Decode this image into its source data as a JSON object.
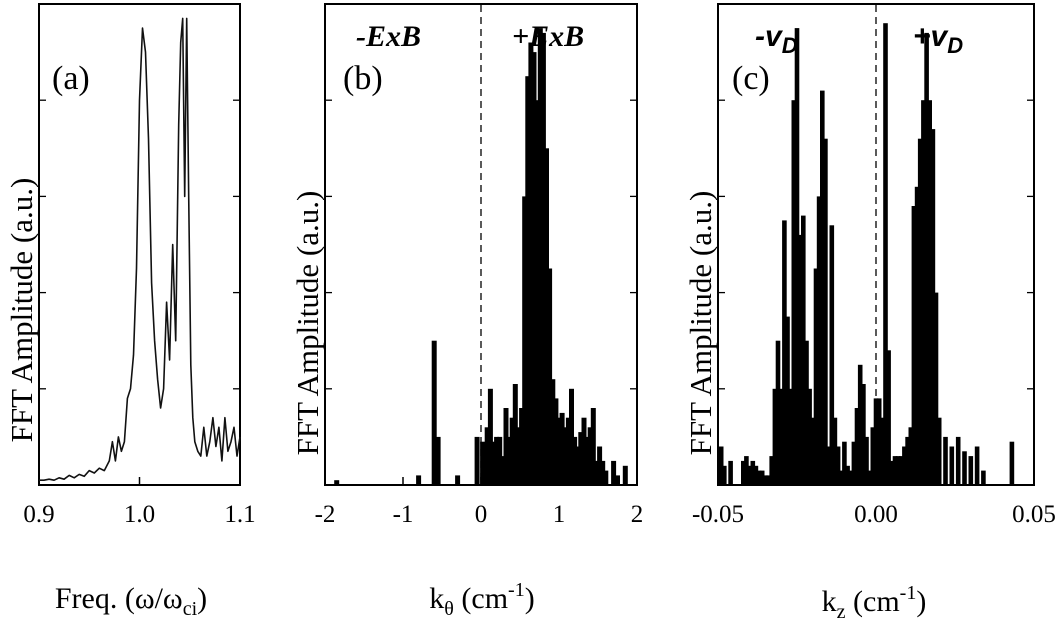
{
  "chart_data": [
    {
      "type": "line",
      "panel_label": "(a)",
      "xlabel": "Freq. (ω/ω",
      "xlabel_sub": "ci",
      "xlabel_tail": ")",
      "ylabel": "FFT Amplitude (a.u.)",
      "xlim": [
        0.9,
        1.1
      ],
      "ylim": [
        0,
        1
      ],
      "x_ticks": [
        0.9,
        1.0,
        1.1
      ],
      "x_tick_labels": [
        "0.9",
        "1.0",
        "1.1"
      ],
      "series": [
        {
          "x": [
            0.9,
            0.905,
            0.91,
            0.915,
            0.92,
            0.925,
            0.93,
            0.935,
            0.94,
            0.945,
            0.95,
            0.955,
            0.96,
            0.965,
            0.97,
            0.973,
            0.976,
            0.979,
            0.982,
            0.985,
            0.988,
            0.991,
            0.994,
            0.997,
            1.0,
            1.003,
            1.006,
            1.009,
            1.012,
            1.015,
            1.018,
            1.021,
            1.024,
            1.027,
            1.03,
            1.033,
            1.036,
            1.039,
            1.041,
            1.043,
            1.045,
            1.047,
            1.049,
            1.051,
            1.053,
            1.055,
            1.058,
            1.061,
            1.064,
            1.067,
            1.07,
            1.073,
            1.076,
            1.079,
            1.082,
            1.085,
            1.088,
            1.091,
            1.094,
            1.097,
            1.1
          ],
          "y": [
            0.01,
            0.01,
            0.012,
            0.01,
            0.015,
            0.012,
            0.02,
            0.015,
            0.022,
            0.018,
            0.03,
            0.025,
            0.035,
            0.03,
            0.05,
            0.09,
            0.05,
            0.1,
            0.07,
            0.09,
            0.18,
            0.2,
            0.27,
            0.45,
            0.8,
            0.95,
            0.9,
            0.72,
            0.42,
            0.3,
            0.22,
            0.16,
            0.2,
            0.38,
            0.26,
            0.5,
            0.3,
            0.75,
            0.92,
            0.97,
            0.6,
            0.97,
            0.6,
            0.25,
            0.14,
            0.09,
            0.07,
            0.06,
            0.12,
            0.06,
            0.09,
            0.14,
            0.08,
            0.12,
            0.05,
            0.14,
            0.07,
            0.09,
            0.12,
            0.06,
            0.1
          ]
        }
      ]
    },
    {
      "type": "bar",
      "panel_label": "(b)",
      "region_left": "-ExB",
      "region_right": "+ExB",
      "xlabel": "k",
      "xlabel_sub": "θ",
      "xlabel_tail": " (cm",
      "xlabel_sup": "-1",
      "xlabel_close": ")",
      "ylabel": "FFT Amplitude (a.u.)",
      "xlim": [
        -2,
        2
      ],
      "ylim": [
        0,
        1
      ],
      "x_ticks": [
        -2,
        -1,
        0,
        1,
        2
      ],
      "x_tick_labels": [
        "-2",
        "-1",
        "0",
        "1",
        "2"
      ],
      "divider_x": 0,
      "x": [
        -1.85,
        -0.8,
        -0.6,
        -0.55,
        -0.3,
        -0.05,
        0.02,
        0.08,
        0.12,
        0.16,
        0.2,
        0.24,
        0.28,
        0.32,
        0.36,
        0.4,
        0.44,
        0.48,
        0.52,
        0.56,
        0.6,
        0.64,
        0.68,
        0.72,
        0.76,
        0.8,
        0.84,
        0.88,
        0.92,
        0.96,
        1.0,
        1.04,
        1.08,
        1.12,
        1.16,
        1.2,
        1.24,
        1.28,
        1.32,
        1.36,
        1.4,
        1.44,
        1.48,
        1.52,
        1.56,
        1.6,
        1.7,
        1.75,
        1.85
      ],
      "values": [
        0.01,
        0.02,
        0.3,
        0.1,
        0.02,
        0.1,
        0.09,
        0.12,
        0.2,
        0.09,
        0.1,
        0.1,
        0.06,
        0.16,
        0.1,
        0.14,
        0.21,
        0.12,
        0.16,
        0.6,
        0.85,
        0.92,
        0.9,
        0.8,
        0.95,
        0.94,
        0.7,
        0.45,
        0.22,
        0.18,
        0.14,
        0.15,
        0.12,
        0.14,
        0.2,
        0.1,
        0.08,
        0.11,
        0.14,
        0.1,
        0.12,
        0.16,
        0.05,
        0.08,
        0.05,
        0.03,
        0.05,
        0.02,
        0.04
      ]
    },
    {
      "type": "bar",
      "panel_label": "(c)",
      "region_left": "-v",
      "region_left_sub": "D",
      "region_right": "+v",
      "region_right_sub": "D",
      "xlabel": "k",
      "xlabel_sub": "z",
      "xlabel_tail": " (cm",
      "xlabel_sup": "-1",
      "xlabel_close": ")",
      "ylabel": "FFT Amplitude (a.u.)",
      "xlim": [
        -0.05,
        0.05
      ],
      "ylim": [
        0,
        1
      ],
      "x_ticks": [
        -0.05,
        0.0,
        0.05
      ],
      "x_tick_labels": [
        "-0.05",
        "0.00",
        "0.05"
      ],
      "divider_x": 0,
      "x": [
        -0.049,
        -0.048,
        -0.046,
        -0.042,
        -0.041,
        -0.04,
        -0.039,
        -0.038,
        -0.037,
        -0.036,
        -0.035,
        -0.034,
        -0.033,
        -0.032,
        -0.031,
        -0.03,
        -0.029,
        -0.028,
        -0.027,
        -0.026,
        -0.025,
        -0.024,
        -0.023,
        -0.022,
        -0.021,
        -0.02,
        -0.019,
        -0.018,
        -0.017,
        -0.016,
        -0.015,
        -0.014,
        -0.013,
        -0.012,
        -0.011,
        -0.01,
        -0.009,
        -0.008,
        -0.007,
        -0.006,
        -0.005,
        -0.004,
        -0.003,
        -0.002,
        -0.001,
        0.0,
        0.001,
        0.002,
        0.003,
        0.004,
        0.005,
        0.006,
        0.007,
        0.008,
        0.009,
        0.01,
        0.011,
        0.012,
        0.013,
        0.014,
        0.015,
        0.016,
        0.017,
        0.018,
        0.019,
        0.02,
        0.022,
        0.024,
        0.026,
        0.028,
        0.03,
        0.032,
        0.034,
        0.043
      ],
      "values": [
        0.08,
        0.04,
        0.05,
        0.05,
        0.06,
        0.04,
        0.05,
        0.04,
        0.03,
        0.03,
        0.02,
        0.02,
        0.06,
        0.2,
        0.3,
        0.2,
        0.55,
        0.35,
        0.2,
        0.8,
        0.95,
        0.52,
        0.56,
        0.3,
        0.2,
        0.14,
        0.45,
        0.6,
        0.82,
        0.72,
        0.08,
        0.54,
        0.14,
        0.08,
        0.03,
        0.09,
        0.04,
        0.03,
        0.09,
        0.16,
        0.25,
        0.21,
        0.1,
        0.03,
        0.12,
        0.18,
        0.18,
        0.14,
        0.96,
        0.28,
        0.05,
        0.06,
        0.06,
        0.06,
        0.08,
        0.1,
        0.12,
        0.58,
        0.62,
        0.72,
        0.8,
        0.94,
        0.8,
        0.74,
        0.4,
        0.14,
        0.1,
        0.08,
        0.1,
        0.07,
        0.06,
        0.08,
        0.03,
        0.09
      ]
    }
  ]
}
